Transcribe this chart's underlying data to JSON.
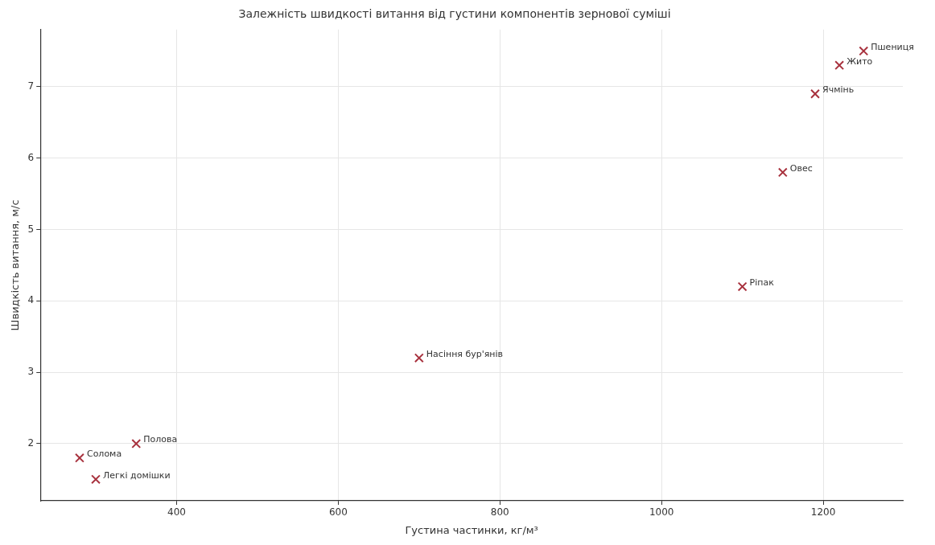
{
  "chart_data": {
    "type": "scatter",
    "title": "Залежність швидкості витання від густини компонентів зернової суміші",
    "xlabel": "Густина частинки, кг/м³",
    "ylabel": "Швидкість витання, м/с",
    "series": [
      {
        "color": "#a8323e",
        "x": [
          280,
          300,
          350,
          700,
          1100,
          1150,
          1190,
          1220,
          1250
        ],
        "values": [
          1.8,
          1.5,
          2.0,
          3.2,
          4.2,
          5.8,
          6.9,
          7.3,
          7.5
        ]
      }
    ],
    "annotations": [
      {
        "text": "Солома",
        "x": 280,
        "y": 1.8
      },
      {
        "text": "Легкі домішки",
        "x": 300,
        "y": 1.5
      },
      {
        "text": "Полова",
        "x": 350,
        "y": 2.0
      },
      {
        "text": "Насіння бур'янів",
        "x": 700,
        "y": 3.2
      },
      {
        "text": "Ріпак",
        "x": 1100,
        "y": 4.2
      },
      {
        "text": "Овес",
        "x": 1150,
        "y": 5.8
      },
      {
        "text": "Ячмінь",
        "x": 1190,
        "y": 6.9
      },
      {
        "text": "Жито",
        "x": 1220,
        "y": 7.3
      },
      {
        "text": "Пшениця",
        "x": 1250,
        "y": 7.5
      }
    ],
    "xlim": [
      231.5,
      1298.5
    ],
    "ylim": [
      1.2,
      7.8
    ],
    "xticks": [
      400,
      600,
      800,
      1000,
      1200
    ],
    "yticks": [
      2,
      3,
      4,
      5,
      6,
      7
    ],
    "grid": true,
    "marker": "cross",
    "legend": false
  }
}
